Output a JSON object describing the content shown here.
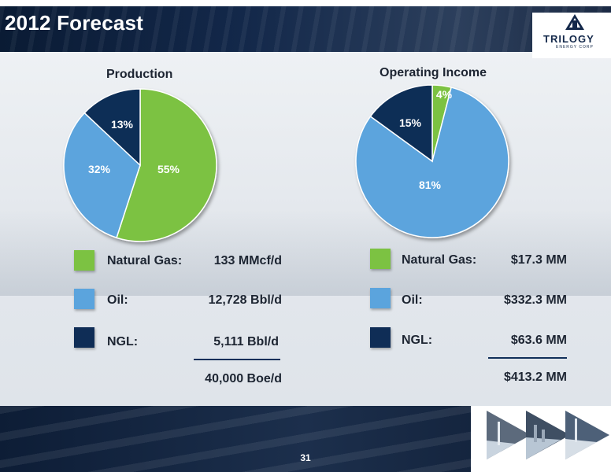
{
  "header": {
    "title": "2012 Forecast"
  },
  "logo": {
    "name": "TRILOGY",
    "tagline": "ENERGY CORP"
  },
  "footer": {
    "page_number": "31"
  },
  "colors": {
    "natural_gas": "#7cc242",
    "oil": "#5ba4dd",
    "ngl": "#0f2d56",
    "label_text": "#ffffff",
    "gas_label_text": "#ffffff"
  },
  "chart_data": [
    {
      "type": "pie",
      "title": "Production",
      "slices": [
        {
          "name": "Natural Gas",
          "percent": 55,
          "label": "55%",
          "value": "133 MMcf/d"
        },
        {
          "name": "Oil",
          "percent": 32,
          "label": "32%",
          "value": "12,728 Bbl/d"
        },
        {
          "name": "NGL",
          "percent": 13,
          "label": "13%",
          "value": "5,111 Bbl/d"
        }
      ],
      "total": "40,000 Boe/d"
    },
    {
      "type": "pie",
      "title": "Operating Income",
      "slices": [
        {
          "name": "Natural Gas",
          "percent": 4,
          "label": "4%",
          "value": "$17.3 MM"
        },
        {
          "name": "Oil",
          "percent": 81,
          "label": "81%",
          "value": "$332.3 MM"
        },
        {
          "name": "NGL",
          "percent": 15,
          "label": "15%",
          "value": "$63.6 MM"
        }
      ],
      "total": "$413.2 MM"
    }
  ],
  "legend": {
    "production": [
      {
        "label": "Natural Gas:",
        "value": "133 MMcf/d"
      },
      {
        "label": "Oil:",
        "value": "12,728 Bbl/d"
      },
      {
        "label": "NGL:",
        "value": "5,111 Bbl/d"
      }
    ],
    "production_total": "40,000 Boe/d",
    "income": [
      {
        "label": "Natural Gas:",
        "value": "$17.3 MM"
      },
      {
        "label": "Oil:",
        "value": "$332.3 MM"
      },
      {
        "label": "NGL:",
        "value": "$63.6 MM"
      }
    ],
    "income_total": "$413.2 MM"
  }
}
